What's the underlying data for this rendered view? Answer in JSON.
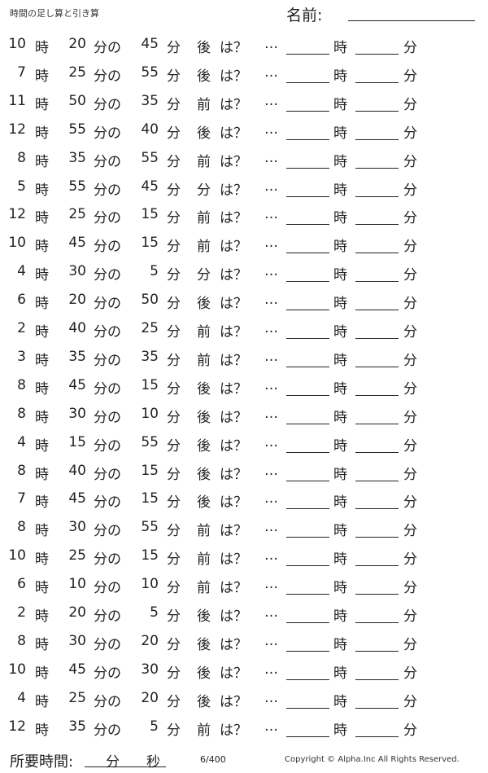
{
  "header": {
    "title": "時間の足し算と引き算",
    "name_label": "名前:"
  },
  "labels": {
    "hour": "時",
    "min_of": "分の",
    "min": "分",
    "question": "は？",
    "dots": "…"
  },
  "problems": [
    {
      "h": "10",
      "m": "20",
      "d": "45",
      "dir": "後"
    },
    {
      "h": "7",
      "m": "25",
      "d": "55",
      "dir": "後"
    },
    {
      "h": "11",
      "m": "50",
      "d": "35",
      "dir": "前"
    },
    {
      "h": "12",
      "m": "55",
      "d": "40",
      "dir": "後"
    },
    {
      "h": "8",
      "m": "35",
      "d": "55",
      "dir": "前"
    },
    {
      "h": "5",
      "m": "55",
      "d": "45",
      "dir": "分"
    },
    {
      "h": "12",
      "m": "25",
      "d": "15",
      "dir": "前"
    },
    {
      "h": "10",
      "m": "45",
      "d": "15",
      "dir": "前"
    },
    {
      "h": "4",
      "m": "30",
      "d": "5",
      "dir": "分"
    },
    {
      "h": "6",
      "m": "20",
      "d": "50",
      "dir": "後"
    },
    {
      "h": "2",
      "m": "40",
      "d": "25",
      "dir": "前"
    },
    {
      "h": "3",
      "m": "35",
      "d": "35",
      "dir": "前"
    },
    {
      "h": "8",
      "m": "45",
      "d": "15",
      "dir": "後"
    },
    {
      "h": "8",
      "m": "30",
      "d": "10",
      "dir": "後"
    },
    {
      "h": "4",
      "m": "15",
      "d": "55",
      "dir": "後"
    },
    {
      "h": "8",
      "m": "40",
      "d": "15",
      "dir": "後"
    },
    {
      "h": "7",
      "m": "45",
      "d": "15",
      "dir": "後"
    },
    {
      "h": "8",
      "m": "30",
      "d": "55",
      "dir": "前"
    },
    {
      "h": "10",
      "m": "25",
      "d": "15",
      "dir": "前"
    },
    {
      "h": "6",
      "m": "10",
      "d": "10",
      "dir": "前"
    },
    {
      "h": "2",
      "m": "20",
      "d": "5",
      "dir": "後"
    },
    {
      "h": "8",
      "m": "30",
      "d": "20",
      "dir": "後"
    },
    {
      "h": "10",
      "m": "45",
      "d": "30",
      "dir": "後"
    },
    {
      "h": "4",
      "m": "25",
      "d": "20",
      "dir": "後"
    },
    {
      "h": "12",
      "m": "35",
      "d": "5",
      "dir": "前"
    }
  ],
  "footer": {
    "time_label": "所要時間:",
    "min": "分",
    "sec": "秒",
    "page": "6/400",
    "copyright": "Copyright ©  Alpha.Inc All Rights Reserved."
  }
}
